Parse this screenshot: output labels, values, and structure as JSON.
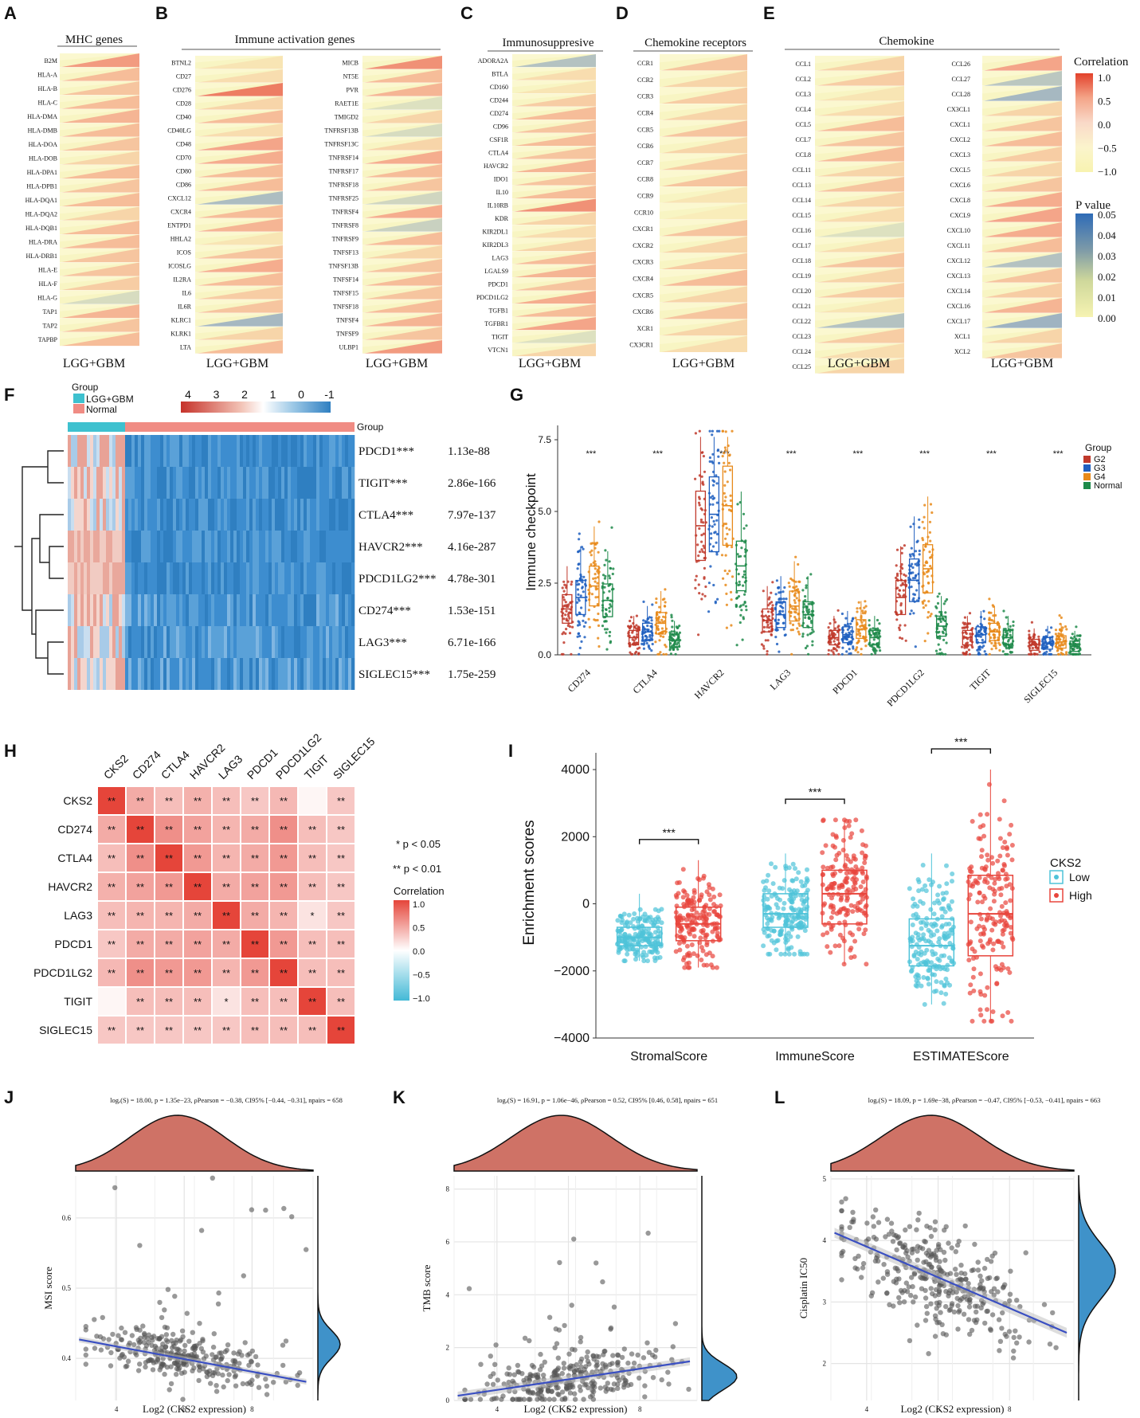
{
  "figure_title": "",
  "colors": {
    "red": "#d7301f",
    "pink": "#f4a58a",
    "yellow": "#f7f4b4",
    "blue": "#5b7fbe",
    "group_lgg_gbm": "#3ec1cf",
    "group_normal": "#f08c84",
    "g2": "#c0392b",
    "g3": "#1f5fbf",
    "g4": "#e88a1a",
    "normal": "#1e8a4a",
    "low": "#4ec3d9",
    "high": "#e8453c",
    "density": "#cf7266",
    "density_right": "#3f92c9"
  },
  "panels": {
    "A": {
      "letter": "A",
      "title": "MHC genes",
      "xlabel": "LGG+GBM"
    },
    "B": {
      "letter": "B",
      "title": "Immune    activation    genes",
      "xlabel1": "LGG+GBM",
      "xlabel2": "LGG+GBM"
    },
    "C": {
      "letter": "C",
      "title": "Immunosuppresive",
      "xlabel": "LGG+GBM"
    },
    "D": {
      "letter": "D",
      "title": "Chemokine receptors",
      "xlabel": "LGG+GBM"
    },
    "E": {
      "letter": "E",
      "title": "Chemokine",
      "xlabel1": "LGG+GBM",
      "xlabel2": "LGG+GBM"
    },
    "F": {
      "letter": "F",
      "group_title": "Group",
      "group_items": [
        "LGG+GBM",
        "Normal"
      ],
      "scale_ticks": [
        "4",
        "3",
        "2",
        "1",
        "0",
        "-1"
      ],
      "top_label": "Group"
    },
    "G": {
      "letter": "G",
      "ylabel": "Immune checkpoint",
      "legend_title": "Group",
      "legend_items": [
        "G2",
        "G3",
        "G4",
        "Normal"
      ]
    },
    "H": {
      "letter": "H",
      "notes": [
        "* p < 0.05",
        "** p < 0.01"
      ],
      "legend_title": "Correlation",
      "legend_ticks": [
        "1.0",
        "0.5",
        "0.0",
        "−0.5",
        "−1.0"
      ]
    },
    "I": {
      "letter": "I",
      "ylabel": "Enrichment scores",
      "legend_title": "CKS2",
      "legend_items": [
        "Low",
        "High"
      ]
    },
    "J": {
      "letter": "J",
      "stats": "logₑ(S) = 18.00, p = 1.35e−23, ρPearson = −0.38, CI95% [−0.44, −0.31], npairs = 658",
      "xlabel": "Log2 (CKS2 expression)",
      "ylabel": "MSI score"
    },
    "K": {
      "letter": "K",
      "stats": "logₑ(S) = 16.91, p = 1.06e−46, ρPearson = 0.52, CI95% [0.46, 0.58], npairs = 651",
      "xlabel": "Log2 (CKS2 expression)",
      "ylabel": "TMB score"
    },
    "L": {
      "letter": "L",
      "stats": "logₑ(S) = 18.09, p = 1.69e−38, ρPearson = −0.47, CI95% [−0.53, −0.41], npairs = 663",
      "xlabel": "Log2 (CKS2 expression)",
      "ylabel": "Cisplatin IC50"
    }
  },
  "chart_data": [
    {
      "id": "A",
      "type": "heatmap",
      "title": "MHC genes",
      "legend": {
        "correlation_ticks": [
          "1.0",
          "0.5",
          "0.0",
          "−0.5",
          "−1.0"
        ],
        "correlation_title": "Correlation",
        "pvalue_title": "P value",
        "pvalue_ticks": [
          "0.05",
          "0.04",
          "0.03",
          "0.02",
          "0.01",
          "0.00"
        ]
      },
      "columns": [
        {
          "label": "LGG+GBM",
          "genes": [
            "B2M",
            "HLA-A",
            "HLA-B",
            "HLA-C",
            "HLA-DMA",
            "HLA-DMB",
            "HLA-DOA",
            "HLA-DOB",
            "HLA-DPA1",
            "HLA-DPB1",
            "HLA-DQA1",
            "HLA-DQA2",
            "HLA-DQB1",
            "HLA-DRA",
            "HLA-DRB1",
            "HLA-E",
            "HLA-F",
            "HLA-G",
            "TAP1",
            "TAP2",
            "TAPBP"
          ],
          "cor": [
            0.55,
            0.35,
            0.3,
            0.35,
            0.4,
            0.35,
            0.3,
            0.2,
            0.35,
            0.3,
            0.35,
            0.2,
            0.35,
            0.35,
            0.3,
            0.3,
            0.25,
            -0.25,
            0.4,
            0.3,
            0.35
          ]
        }
      ]
    },
    {
      "id": "B",
      "type": "heatmap",
      "title": "Immune activation genes",
      "columns": [
        {
          "label": "LGG+GBM",
          "genes": [
            "BTNL2",
            "CD27",
            "CD276",
            "CD28",
            "CD40",
            "CD40LG",
            "CD48",
            "CD70",
            "CD80",
            "CD86",
            "CXCL12",
            "CXCR4",
            "ENTPD1",
            "HHLA2",
            "ICOS",
            "ICOSLG",
            "IL2RA",
            "IL6",
            "IL6R",
            "KLRC1",
            "KLRK1",
            "LTA"
          ],
          "cor": [
            0.1,
            0.15,
            0.7,
            0.2,
            0.35,
            0.15,
            0.5,
            0.45,
            0.35,
            0.35,
            -0.55,
            0.35,
            0.4,
            0.1,
            0.3,
            0.45,
            0.35,
            0.25,
            0.3,
            -0.6,
            0.2,
            0.35
          ]
        },
        {
          "label": "LGG+GBM",
          "genes": [
            "MICB",
            "NT5E",
            "PVR",
            "RAET1E",
            "TMIGD2",
            "TNFRSF13B",
            "TNFRSF13C",
            "TNFRSF14",
            "TNFRSF17",
            "TNFRSF18",
            "TNFRSF25",
            "TNFRSF4",
            "TNFRSF8",
            "TNFRSF9",
            "TNFSF13",
            "TNFSF13B",
            "TNFSF14",
            "TNFSF15",
            "TNFSF18",
            "TNFSF4",
            "TNFSF9",
            "ULBP1"
          ],
          "cor": [
            0.6,
            0.35,
            0.4,
            -0.2,
            0.2,
            -0.25,
            0.2,
            0.45,
            0.35,
            0.3,
            -0.3,
            0.45,
            -0.35,
            0.35,
            0.2,
            0.3,
            0.35,
            0.3,
            0.35,
            0.4,
            0.3,
            0.55
          ]
        }
      ]
    },
    {
      "id": "C",
      "type": "heatmap",
      "title": "Immunosuppresive",
      "columns": [
        {
          "label": "LGG+GBM",
          "genes": [
            "ADORA2A",
            "BTLA",
            "CD160",
            "CD244",
            "CD274",
            "CD96",
            "CSF1R",
            "CTLA4",
            "HAVCR2",
            "IDO1",
            "IL10",
            "IL10RB",
            "KDR",
            "KIR2DL1",
            "KIR2DL3",
            "LAG3",
            "LGALS9",
            "PDCD1",
            "PDCD1LG2",
            "TGFB1",
            "TGFBR1",
            "TIGIT",
            "VTCN1"
          ],
          "cor": [
            -0.5,
            0.15,
            0.1,
            0.25,
            0.35,
            0.3,
            0.35,
            0.3,
            0.4,
            0.3,
            0.35,
            0.6,
            0.2,
            0.15,
            0.2,
            0.35,
            0.4,
            0.3,
            0.45,
            0.35,
            0.5,
            -0.2,
            0.2
          ]
        }
      ]
    },
    {
      "id": "D",
      "type": "heatmap",
      "title": "Chemokine receptors",
      "columns": [
        {
          "label": "LGG+GBM",
          "genes": [
            "CCR1",
            "CCR2",
            "CCR3",
            "CCR4",
            "CCR5",
            "CCR6",
            "CCR7",
            "CCR8",
            "CCR9",
            "CCR10",
            "CXCR1",
            "CXCR2",
            "CXCR3",
            "CXCR4",
            "CXCR5",
            "CXCR6",
            "XCR1",
            "CX3CR1"
          ],
          "cor": [
            0.3,
            0.2,
            0.25,
            0.2,
            0.3,
            0.2,
            0.25,
            0.3,
            0.1,
            0.05,
            0.3,
            0.2,
            0.25,
            0.35,
            0.2,
            0.3,
            0.2,
            0.15
          ]
        }
      ]
    },
    {
      "id": "E",
      "type": "heatmap",
      "title": "Chemokine",
      "columns": [
        {
          "label": "LGG+GBM",
          "genes": [
            "CCL1",
            "CCL2",
            "CCL3",
            "CCL4",
            "CCL5",
            "CCL7",
            "CCL8",
            "CCL11",
            "CCL13",
            "CCL14",
            "CCL15",
            "CCL16",
            "CCL17",
            "CCL18",
            "CCL19",
            "CCL20",
            "CCL21",
            "CCL22",
            "CCL23",
            "CCL24",
            "CCL25"
          ],
          "cor": [
            0.2,
            0.25,
            0.1,
            0.15,
            0.35,
            0.3,
            0.35,
            0.2,
            0.3,
            0.2,
            0.15,
            -0.2,
            0.15,
            0.3,
            0.2,
            0.25,
            0.1,
            -0.5,
            0.25,
            0.15,
            0.2
          ]
        },
        {
          "label": "LGG+GBM",
          "genes": [
            "CCL26",
            "CCL27",
            "CCL28",
            "CX3CL1",
            "CXCL1",
            "CXCL2",
            "CXCL3",
            "CXCL5",
            "CXCL6",
            "CXCL8",
            "CXCL9",
            "CXCL10",
            "CXCL11",
            "CXCL12",
            "CXCL13",
            "CXCL14",
            "CXCL16",
            "CXCL17",
            "XCL1",
            "XCL2"
          ],
          "cor": [
            0.5,
            -0.45,
            -0.6,
            0.2,
            0.3,
            0.35,
            0.25,
            0.2,
            0.3,
            0.45,
            0.5,
            0.45,
            0.35,
            -0.5,
            0.3,
            0.25,
            0.4,
            -0.65,
            0.2,
            0.3
          ]
        }
      ]
    },
    {
      "id": "F",
      "type": "heatmap",
      "genes": [
        "PDCD1***",
        "TIGIT***",
        "CTLA4***",
        "HAVCR2***",
        "PDCD1LG2***",
        "CD274***",
        "LAG3***",
        "SIGLEC15***"
      ],
      "pvalues": [
        "1.13e-88",
        "2.86e-166",
        "7.97e-137",
        "4.16e-287",
        "4.78e-301",
        "1.53e-151",
        "6.71e-166",
        "1.75e-259"
      ],
      "groups": [
        "LGG+GBM",
        "Normal"
      ]
    },
    {
      "id": "G",
      "type": "scatter",
      "subtype": "box+jitter",
      "categories": [
        "CD274",
        "CTLA4",
        "HAVCR2",
        "LAG3",
        "PDCD1",
        "PDCD1LG2",
        "TIGIT",
        "SIGLEC15"
      ],
      "significance": [
        "***",
        "***",
        "***",
        "***",
        "***",
        "***",
        "***",
        "***"
      ],
      "series": [
        {
          "name": "G2",
          "medians": [
            1.6,
            0.6,
            4.5,
            1.2,
            0.6,
            2.0,
            0.6,
            0.35
          ]
        },
        {
          "name": "G3",
          "medians": [
            2.0,
            0.8,
            4.9,
            1.4,
            0.7,
            2.6,
            0.7,
            0.4
          ]
        },
        {
          "name": "G4",
          "medians": [
            2.4,
            1.1,
            5.2,
            1.7,
            0.9,
            3.0,
            0.8,
            0.45
          ]
        },
        {
          "name": "Normal",
          "medians": [
            1.9,
            0.5,
            3.1,
            1.4,
            0.6,
            1.0,
            0.6,
            0.3
          ]
        }
      ],
      "ylabel": "Immune checkpoint",
      "ylim": [
        0,
        8
      ],
      "yticks": [
        "0.0",
        "2.5",
        "5.0",
        "7.5"
      ]
    },
    {
      "id": "H",
      "type": "heatmap",
      "labels": [
        "CKS2",
        "CD274",
        "CTLA4",
        "HAVCR2",
        "LAG3",
        "PDCD1",
        "PDCD1LG2",
        "TIGIT",
        "SIGLEC15"
      ],
      "matrix": [
        [
          1.0,
          0.45,
          0.35,
          0.42,
          0.35,
          0.3,
          0.38,
          0.05,
          0.3
        ],
        [
          0.45,
          1.0,
          0.6,
          0.5,
          0.4,
          0.45,
          0.6,
          0.35,
          0.3
        ],
        [
          0.35,
          0.6,
          1.0,
          0.55,
          0.4,
          0.45,
          0.55,
          0.35,
          0.3
        ],
        [
          0.42,
          0.5,
          0.55,
          1.0,
          0.45,
          0.5,
          0.55,
          0.35,
          0.3
        ],
        [
          0.35,
          0.4,
          0.4,
          0.45,
          1.0,
          0.45,
          0.4,
          0.15,
          0.3
        ],
        [
          0.3,
          0.45,
          0.45,
          0.5,
          0.45,
          1.0,
          0.55,
          0.35,
          0.35
        ],
        [
          0.38,
          0.6,
          0.55,
          0.55,
          0.4,
          0.55,
          1.0,
          0.35,
          0.35
        ],
        [
          0.05,
          0.35,
          0.35,
          0.35,
          0.15,
          0.35,
          0.35,
          1.0,
          0.35
        ],
        [
          0.3,
          0.3,
          0.3,
          0.3,
          0.3,
          0.35,
          0.35,
          0.35,
          1.0
        ]
      ],
      "stars": [
        [
          "**",
          "**",
          "**",
          "**",
          "**",
          "**",
          "**",
          "",
          "**"
        ],
        [
          "**",
          "**",
          "**",
          "**",
          "**",
          "**",
          "**",
          "**",
          "**"
        ],
        [
          "**",
          "**",
          "**",
          "**",
          "**",
          "**",
          "**",
          "**",
          "**"
        ],
        [
          "**",
          "**",
          "**",
          "**",
          "**",
          "**",
          "**",
          "**",
          "**"
        ],
        [
          "**",
          "**",
          "**",
          "**",
          "**",
          "**",
          "**",
          "*",
          "**"
        ],
        [
          "**",
          "**",
          "**",
          "**",
          "**",
          "**",
          "**",
          "**",
          "**"
        ],
        [
          "**",
          "**",
          "**",
          "**",
          "**",
          "**",
          "**",
          "**",
          "**"
        ],
        [
          "",
          "**",
          "**",
          "**",
          "*",
          "**",
          "**",
          "**",
          "**"
        ],
        [
          "**",
          "**",
          "**",
          "**",
          "**",
          "**",
          "**",
          "**",
          "**"
        ]
      ]
    },
    {
      "id": "I",
      "type": "scatter",
      "subtype": "box+jitter",
      "categories": [
        "StromalScore",
        "ImmuneScore",
        "ESTIMATEScore"
      ],
      "significance": [
        "***",
        "***",
        "***"
      ],
      "series": [
        {
          "name": "Low",
          "q1": [
            -1250,
            -700,
            -1850
          ],
          "median": [
            -1000,
            -300,
            -1250
          ],
          "q3": [
            -700,
            300,
            -450
          ],
          "min": [
            -1700,
            -1500,
            -3000
          ],
          "max": [
            300,
            1500,
            1500
          ]
        },
        {
          "name": "High",
          "q1": [
            -1100,
            -600,
            -1550
          ],
          "median": [
            -600,
            300,
            -300
          ],
          "q3": [
            -100,
            1000,
            850
          ],
          "min": [
            -1900,
            -1800,
            -3500
          ],
          "max": [
            1300,
            2500,
            4000
          ]
        }
      ],
      "ylabel": "Enrichment scores",
      "ylim": [
        -4000,
        4500
      ],
      "yticks": [
        "4000",
        "2000",
        "0",
        "−2000",
        "−4000"
      ]
    },
    {
      "id": "J",
      "type": "scatter",
      "xlabel": "Log2 (CKS2 expression)",
      "ylabel": "MSI score",
      "xlim": [
        2.8,
        9.8
      ],
      "ylim": [
        0.34,
        0.66
      ],
      "xticks": [
        "4",
        "6",
        "8"
      ],
      "yticks": [
        "0.4",
        "0.5",
        "0.6"
      ],
      "regression": {
        "slope": -0.009,
        "intercept": 0.453
      }
    },
    {
      "id": "K",
      "type": "scatter",
      "xlabel": "Log2 (CKS2 expression)",
      "ylabel": "TMB score",
      "xlim": [
        2.8,
        9.6
      ],
      "ylim": [
        0,
        8.5
      ],
      "xticks": [
        "4",
        "6",
        "8"
      ],
      "yticks": [
        "0",
        "2",
        "4",
        "6",
        "8"
      ],
      "regression": {
        "slope": 0.2,
        "intercept": -0.4
      }
    },
    {
      "id": "L",
      "type": "scatter",
      "xlabel": "Log2 (CKS2 expression)",
      "ylabel": "Cisplatin IC50",
      "xlim": [
        3.0,
        9.8
      ],
      "ylim": [
        1.4,
        5.05
      ],
      "xticks": [
        "4",
        "6",
        "8"
      ],
      "yticks": [
        "2",
        "3",
        "4",
        "5"
      ],
      "regression": {
        "slope": -0.25,
        "intercept": 4.9
      }
    }
  ]
}
